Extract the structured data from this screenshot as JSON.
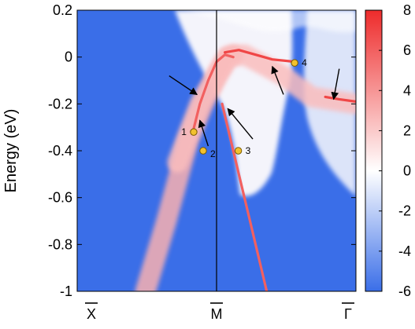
{
  "chart_data": {
    "type": "heatmap",
    "title": "",
    "ylabel": "Energy (eV)",
    "xlabel": "",
    "ylim": [
      -1.0,
      0.2
    ],
    "y_ticks": [
      {
        "value": 0.2,
        "label": "0.2"
      },
      {
        "value": 0.0,
        "label": "0"
      },
      {
        "value": -0.2,
        "label": "-0.2"
      },
      {
        "value": -0.4,
        "label": "-0.4"
      },
      {
        "value": -0.6,
        "label": "-0.6"
      },
      {
        "value": -0.8,
        "label": "-0.8"
      },
      {
        "value": -1.0,
        "label": "-1"
      }
    ],
    "x_ticks": [
      {
        "value": 0.0,
        "label": "X"
      },
      {
        "value": 0.5,
        "label": "M"
      },
      {
        "value": 1.0,
        "label": "Γ"
      }
    ],
    "k_path_labels_overlined": true,
    "vertical_line_at": 0.5,
    "colorbar": {
      "range": [
        -6,
        8
      ],
      "ticks": [
        {
          "value": 8,
          "label": "8"
        },
        {
          "value": 6,
          "label": "6"
        },
        {
          "value": 4,
          "label": "4"
        },
        {
          "value": 2,
          "label": "2"
        },
        {
          "value": 0,
          "label": "0"
        },
        {
          "value": -2,
          "label": "-2"
        },
        {
          "value": -4,
          "label": "-4"
        },
        {
          "value": -6,
          "label": "-6"
        }
      ],
      "colors": {
        "low": "#3a6ee8",
        "mid": "#ffffff",
        "high": "#ee2b2b"
      }
    },
    "bands": [
      {
        "kind": "left_bulk_ribbon",
        "points": [
          [
            0.245,
            -1.0
          ],
          [
            0.32,
            -0.7
          ],
          [
            0.4,
            -0.35
          ],
          [
            0.46,
            -0.18
          ],
          [
            0.5,
            -0.08
          ],
          [
            0.54,
            0.0
          ],
          [
            0.56,
            0.01
          ]
        ],
        "intensity": 3
      },
      {
        "kind": "right_bulk_ribbon",
        "points": [
          [
            0.36,
            -0.45
          ],
          [
            0.44,
            -0.2
          ],
          [
            0.5,
            -0.08
          ],
          [
            0.54,
            0.0
          ],
          [
            0.6,
            0.01
          ],
          [
            0.74,
            -0.08
          ],
          [
            0.84,
            -0.17
          ],
          [
            1.0,
            -0.2
          ]
        ],
        "intensity": 2.5
      },
      {
        "kind": "surface_state",
        "points": [
          [
            0.415,
            -0.32
          ],
          [
            0.44,
            -0.2
          ],
          [
            0.47,
            -0.1
          ],
          [
            0.5,
            -0.02
          ],
          [
            0.53,
            0.01
          ],
          [
            0.56,
            0.0
          ]
        ],
        "intensity": 6
      },
      {
        "kind": "surface_state",
        "points": [
          [
            0.52,
            -0.2
          ],
          [
            0.56,
            -0.4
          ],
          [
            0.62,
            -0.7
          ],
          [
            0.68,
            -1.0
          ]
        ],
        "intensity": 6
      },
      {
        "kind": "surface_state",
        "points": [
          [
            0.53,
            0.02
          ],
          [
            0.58,
            0.03
          ],
          [
            0.64,
            0.01
          ],
          [
            0.7,
            -0.01
          ],
          [
            0.78,
            -0.02
          ]
        ],
        "intensity": 7
      },
      {
        "kind": "surface_state",
        "points": [
          [
            0.89,
            -0.17
          ],
          [
            0.94,
            -0.18
          ],
          [
            1.0,
            -0.19
          ]
        ],
        "intensity": 7
      }
    ],
    "markers": [
      {
        "label": "1",
        "k": 0.418,
        "energy": -0.32
      },
      {
        "label": "2",
        "k": 0.452,
        "energy": -0.4
      },
      {
        "label": "3",
        "k": 0.578,
        "energy": -0.4
      },
      {
        "label": "4",
        "k": 0.78,
        "energy": -0.025
      }
    ],
    "arrows": [
      {
        "from": [
          0.33,
          -0.08
        ],
        "to": [
          0.43,
          -0.16
        ]
      },
      {
        "from": [
          0.47,
          -0.38
        ],
        "to": [
          0.44,
          -0.27
        ]
      },
      {
        "from": [
          0.63,
          -0.35
        ],
        "to": [
          0.54,
          -0.22
        ]
      },
      {
        "from": [
          0.74,
          -0.16
        ],
        "to": [
          0.7,
          -0.04
        ]
      },
      {
        "from": [
          0.94,
          -0.05
        ],
        "to": [
          0.92,
          -0.18
        ]
      }
    ]
  }
}
